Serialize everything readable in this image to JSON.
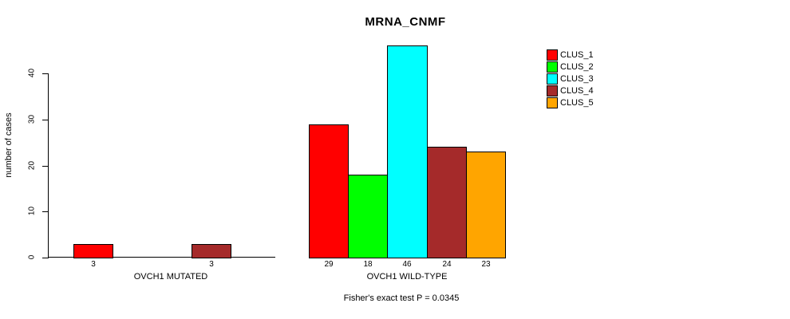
{
  "chart_data": {
    "type": "bar",
    "title": "MRNA_CNMF",
    "ylabel": "number of cases",
    "annotation": "Fisher's exact test P = 0.0345",
    "ylim": [
      0,
      46
    ],
    "yticks": [
      0,
      10,
      20,
      30,
      40
    ],
    "grid": false,
    "legend_position": "right",
    "clusters": [
      {
        "name": "CLUS_1",
        "color": "#FF0000"
      },
      {
        "name": "CLUS_2",
        "color": "#00FF00"
      },
      {
        "name": "CLUS_3",
        "color": "#00FFFF"
      },
      {
        "name": "CLUS_4",
        "color": "#A52A2A"
      },
      {
        "name": "CLUS_5",
        "color": "#FFA500"
      }
    ],
    "groups": [
      {
        "label": "OVCH1 MUTATED",
        "values": [
          3,
          null,
          null,
          3,
          null
        ]
      },
      {
        "label": "OVCH1 WILD-TYPE",
        "values": [
          29,
          18,
          46,
          24,
          23
        ]
      }
    ]
  }
}
